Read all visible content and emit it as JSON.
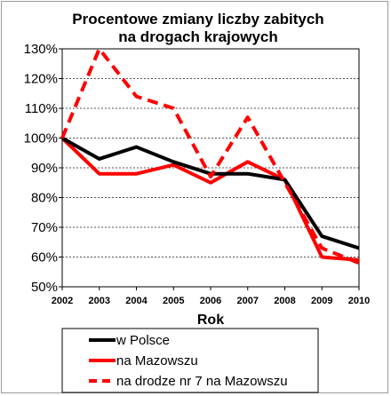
{
  "chart_data": {
    "type": "line",
    "title_lines": [
      "Procentowe zmiany liczby zabitych",
      "na drogach krajowych"
    ],
    "xlabel": "Rok",
    "ylabel": "",
    "x": [
      "2002",
      "2003",
      "2004",
      "2005",
      "2006",
      "2007",
      "2008",
      "2009",
      "2010"
    ],
    "y_ticks": [
      "50%",
      "60%",
      "70%",
      "80%",
      "90%",
      "100%",
      "110%",
      "120%",
      "130%"
    ],
    "ylim": [
      50,
      130
    ],
    "grid": "horizontal-dashed",
    "legend_position": "bottom",
    "series": [
      {
        "name": "w Polsce",
        "color": "#000000",
        "style": "solid",
        "values": [
          100,
          93,
          97,
          92,
          88,
          88,
          86,
          67,
          63
        ]
      },
      {
        "name": "na Mazowszu",
        "color": "#ff0000",
        "style": "solid",
        "values": [
          100,
          88,
          88,
          91,
          85,
          92,
          86,
          60,
          59
        ]
      },
      {
        "name": "na drodze nr 7 na Mazowszu",
        "color": "#ff0000",
        "style": "dashed",
        "values": [
          100,
          130,
          114,
          110,
          87,
          107,
          85,
          63,
          58
        ]
      }
    ]
  }
}
